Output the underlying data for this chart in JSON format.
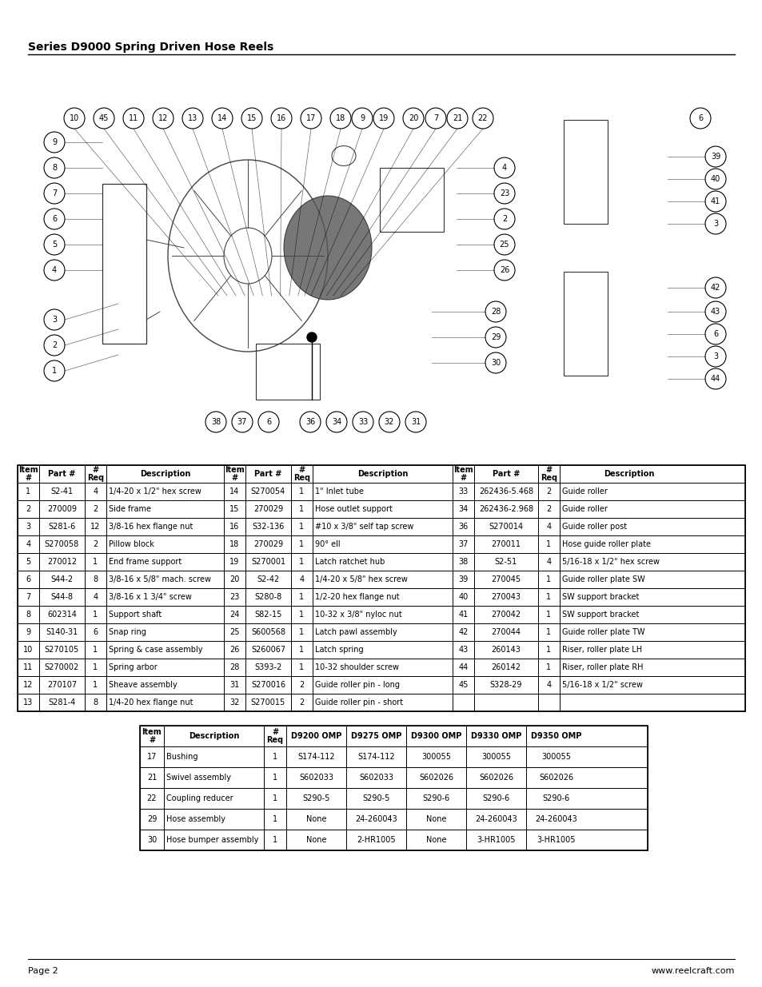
{
  "title": "Series D9000 Spring Driven Hose Reels",
  "footer_left": "Page 2",
  "footer_right": "www.reelcraft.com",
  "main_table_rows": [
    [
      "1",
      "S2-41",
      "4",
      "1/4-20 x 1/2\" hex screw",
      "14",
      "S270054",
      "1",
      "1\" Inlet tube",
      "33",
      "262436-5.468",
      "2",
      "Guide roller"
    ],
    [
      "2",
      "270009",
      "2",
      "Side frame",
      "15",
      "270029",
      "1",
      "Hose outlet support",
      "34",
      "262436-2.968",
      "2",
      "Guide roller"
    ],
    [
      "3",
      "S281-6",
      "12",
      "3/8-16 hex flange nut",
      "16",
      "S32-136",
      "1",
      "#10 x 3/8\" self tap screw",
      "36",
      "S270014",
      "4",
      "Guide roller post"
    ],
    [
      "4",
      "S270058",
      "2",
      "Pillow block",
      "18",
      "270029",
      "1",
      "90° ell",
      "37",
      "270011",
      "1",
      "Hose guide roller plate"
    ],
    [
      "5",
      "270012",
      "1",
      "End frame support",
      "19",
      "S270001",
      "1",
      "Latch ratchet hub",
      "38",
      "S2-51",
      "4",
      "5/16-18 x 1/2\" hex screw"
    ],
    [
      "6",
      "S44-2",
      "8",
      "3/8-16 x 5/8\" mach. screw",
      "20",
      "S2-42",
      "4",
      "1/4-20 x 5/8\" hex screw",
      "39",
      "270045",
      "1",
      "Guide roller plate SW"
    ],
    [
      "7",
      "S44-8",
      "4",
      "3/8-16 x 1 3/4\" screw",
      "23",
      "S280-8",
      "1",
      "1/2-20 hex flange nut",
      "40",
      "270043",
      "1",
      "SW support bracket"
    ],
    [
      "8",
      "602314",
      "1",
      "Support shaft",
      "24",
      "S82-15",
      "1",
      "10-32 x 3/8\" nyloc nut",
      "41",
      "270042",
      "1",
      "SW support bracket"
    ],
    [
      "9",
      "S140-31",
      "6",
      "Snap ring",
      "25",
      "S600568",
      "1",
      "Latch pawl assembly",
      "42",
      "270044",
      "1",
      "Guide roller plate TW"
    ],
    [
      "10",
      "S270105",
      "1",
      "Spring & case assembly",
      "26",
      "S260067",
      "1",
      "Latch spring",
      "43",
      "260143",
      "1",
      "Riser, roller plate LH"
    ],
    [
      "11",
      "S270002",
      "1",
      "Spring arbor",
      "28",
      "S393-2",
      "1",
      "10-32 shoulder screw",
      "44",
      "260142",
      "1",
      "Riser, roller plate RH"
    ],
    [
      "12",
      "270107",
      "1",
      "Sheave assembly",
      "31",
      "S270016",
      "2",
      "Guide roller pin - long",
      "45",
      "S328-29",
      "4",
      "5/16-18 x 1/2\" screw"
    ],
    [
      "13",
      "S281-4",
      "8",
      "1/4-20 hex flange nut",
      "32",
      "S270015",
      "2",
      "Guide roller pin - short",
      "",
      "",
      "",
      ""
    ]
  ],
  "model_table_rows": [
    [
      "17",
      "Bushing",
      "1",
      "S174-112",
      "S174-112",
      "300055",
      "300055",
      "300055"
    ],
    [
      "21",
      "Swivel assembly",
      "1",
      "S602033",
      "S602033",
      "S602026",
      "S602026",
      "S602026"
    ],
    [
      "22",
      "Coupling reducer",
      "1",
      "S290-5",
      "S290-5",
      "S290-6",
      "S290-6",
      "S290-6"
    ],
    [
      "29",
      "Hose assembly",
      "1",
      "None",
      "24-260043",
      "None",
      "24-260043",
      "24-260043"
    ],
    [
      "30",
      "Hose bumper assembly",
      "1",
      "None",
      "2-HR1005",
      "None",
      "3-HR1005",
      "3-HR1005"
    ]
  ],
  "diagram_circles_top": [
    [
      93,
      148,
      "10"
    ],
    [
      130,
      148,
      "45"
    ],
    [
      167,
      148,
      "11"
    ],
    [
      204,
      148,
      "12"
    ],
    [
      241,
      148,
      "13"
    ],
    [
      278,
      148,
      "14"
    ],
    [
      315,
      148,
      "15"
    ],
    [
      352,
      148,
      "16"
    ],
    [
      389,
      148,
      "17"
    ],
    [
      426,
      148,
      "18"
    ],
    [
      453,
      148,
      "9"
    ],
    [
      480,
      148,
      "19"
    ],
    [
      517,
      148,
      "20"
    ],
    [
      545,
      148,
      "7"
    ],
    [
      572,
      148,
      "21"
    ],
    [
      604,
      148,
      "22"
    ]
  ],
  "diagram_circles_left": [
    [
      68,
      178,
      "9"
    ],
    [
      68,
      210,
      "8"
    ],
    [
      68,
      242,
      "7"
    ],
    [
      68,
      274,
      "6"
    ],
    [
      68,
      306,
      "5"
    ],
    [
      68,
      338,
      "4"
    ]
  ],
  "diagram_circles_right_top": [
    [
      631,
      210,
      "4"
    ],
    [
      631,
      242,
      "23"
    ],
    [
      631,
      274,
      "2"
    ],
    [
      631,
      306,
      "25"
    ],
    [
      631,
      338,
      "26"
    ]
  ],
  "diagram_circles_right": [
    [
      620,
      390,
      "28"
    ],
    [
      620,
      422,
      "29"
    ],
    [
      620,
      454,
      "30"
    ]
  ],
  "diagram_circles_bottom_left": [
    [
      68,
      400,
      "3"
    ],
    [
      68,
      432,
      "2"
    ],
    [
      68,
      464,
      "1"
    ]
  ],
  "diagram_circles_bottom": [
    [
      270,
      528,
      "38"
    ],
    [
      303,
      528,
      "37"
    ],
    [
      336,
      528,
      "6"
    ],
    [
      388,
      528,
      "36"
    ],
    [
      421,
      528,
      "34"
    ],
    [
      454,
      528,
      "33"
    ],
    [
      487,
      528,
      "32"
    ],
    [
      520,
      528,
      "31"
    ]
  ],
  "diagram_circles_far_right_top": [
    [
      876,
      148,
      "6"
    ]
  ],
  "diagram_circles_far_right_side": [
    [
      895,
      196,
      "39"
    ],
    [
      895,
      224,
      "40"
    ],
    [
      895,
      252,
      "41"
    ],
    [
      895,
      280,
      "3"
    ]
  ],
  "diagram_circles_far_right_bot": [
    [
      895,
      360,
      "42"
    ],
    [
      895,
      390,
      "43"
    ],
    [
      895,
      418,
      "6"
    ],
    [
      895,
      446,
      "3"
    ],
    [
      895,
      474,
      "44"
    ]
  ]
}
